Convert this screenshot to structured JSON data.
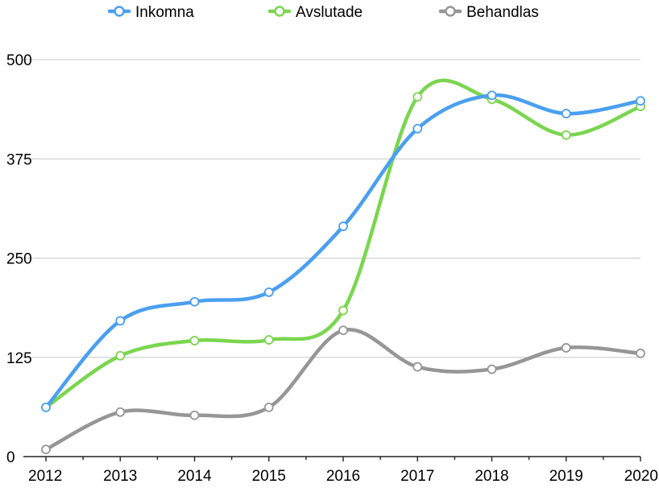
{
  "chart_data": {
    "type": "line",
    "title": "",
    "xlabel": "",
    "ylabel": "",
    "categories": [
      "2012",
      "2013",
      "2014",
      "2015",
      "2016",
      "2017",
      "2018",
      "2019",
      "2020"
    ],
    "ylim": [
      0,
      500
    ],
    "yticks": [
      "0",
      "125",
      "250",
      "375",
      "500"
    ],
    "grid": true,
    "legend_position": "top",
    "series": [
      {
        "name": "Inkomna",
        "color": "#4a9ff0",
        "values": [
          62,
          171,
          195,
          207,
          290,
          413,
          455,
          432,
          448
        ]
      },
      {
        "name": "Avslutade",
        "color": "#7ad64e",
        "values": [
          62,
          127,
          146,
          147,
          184,
          453,
          450,
          405,
          441
        ]
      },
      {
        "name": "Behandlas",
        "color": "#969696",
        "values": [
          9,
          56,
          52,
          62,
          159,
          113,
          110,
          137,
          130
        ]
      }
    ]
  }
}
